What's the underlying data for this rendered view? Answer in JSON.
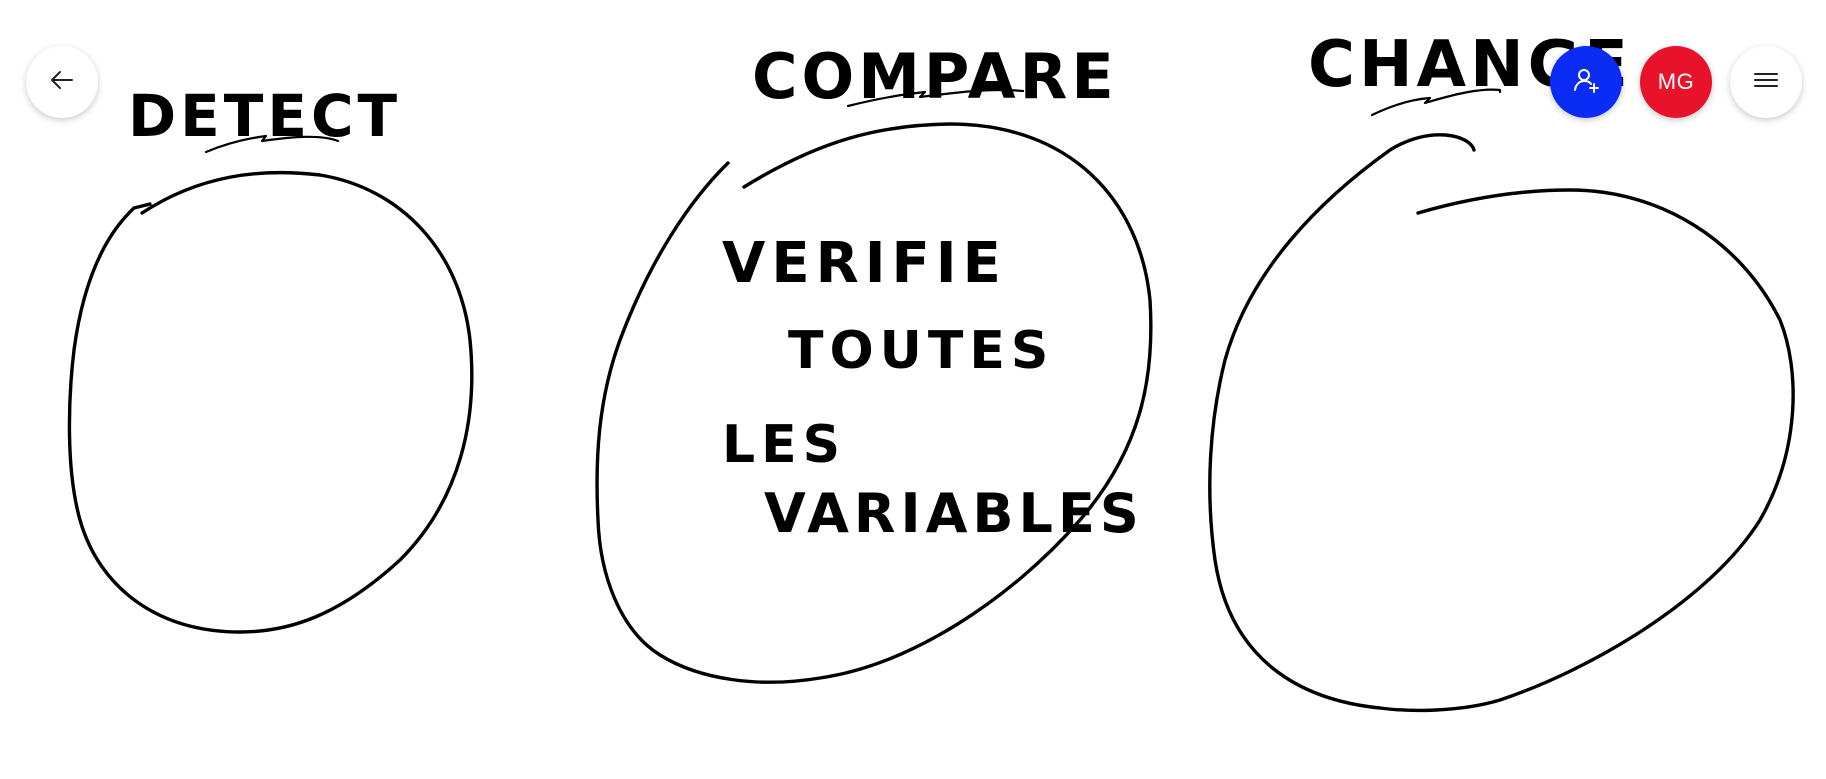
{
  "canvas": {
    "headings": {
      "detect": "DETECT",
      "compare": "COMPARE",
      "change": "CHANGE"
    },
    "compare_note": {
      "line1": "VERIFIE",
      "line2": "TOUTES",
      "line3": "LES",
      "line4": "VARIABLES"
    }
  },
  "toolbar": {
    "back_icon": "arrow-left-icon",
    "invite_icon": "person-add-icon",
    "avatar_initials": "MG",
    "menu_icon": "hamburger-menu-icon"
  },
  "colors": {
    "invite_button": "#0a2cf5",
    "avatar": "#e8132a",
    "ink": "#000000",
    "background": "#ffffff"
  }
}
